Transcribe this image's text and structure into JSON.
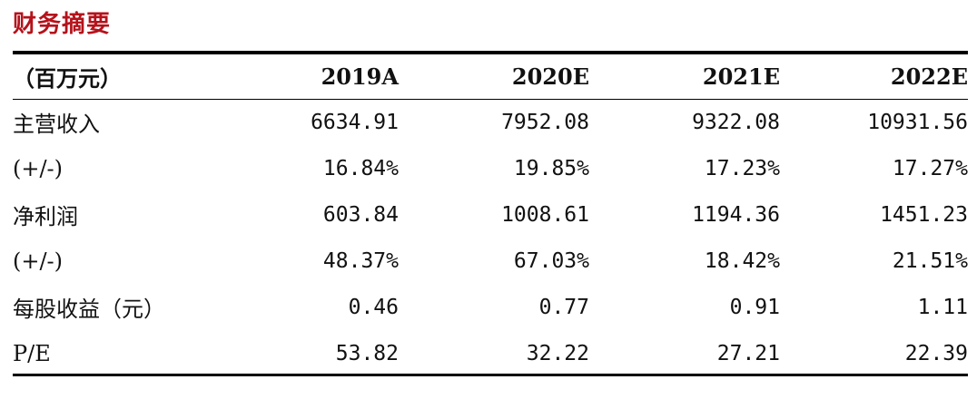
{
  "title": "财务摘要",
  "header": {
    "unit_label": "（百万元）",
    "years": [
      "2019A",
      "2020E",
      "2021E",
      "2022E"
    ]
  },
  "rows": [
    {
      "label": "主营收入",
      "values": [
        "6634.91",
        "7952.08",
        "9322.08",
        "10931.56"
      ]
    },
    {
      "label": "(+/-)",
      "values": [
        "16.84%",
        "19.85%",
        "17.23%",
        "17.27%"
      ]
    },
    {
      "label": "净利润",
      "values": [
        "603.84",
        "1008.61",
        "1194.36",
        "1451.23"
      ]
    },
    {
      "label": "(+/-)",
      "values": [
        "48.37%",
        "67.03%",
        "18.42%",
        "21.51%"
      ]
    },
    {
      "label": "每股收益（元）",
      "values": [
        "0.46",
        "0.77",
        "0.91",
        "1.11"
      ]
    },
    {
      "label": "P/E",
      "values": [
        "53.82",
        "32.22",
        "27.21",
        "22.39"
      ]
    }
  ],
  "colors": {
    "title": "#b5121b",
    "rules": "#000000"
  }
}
